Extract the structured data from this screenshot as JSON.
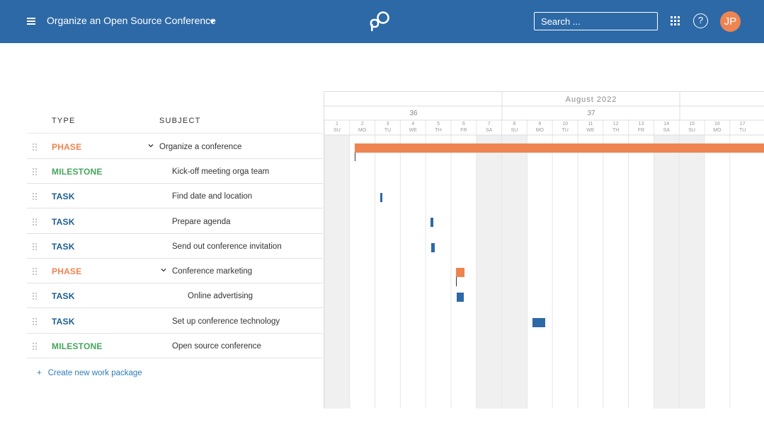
{
  "header": {
    "project_title": "Organize an Open Source Conference",
    "search_placeholder": "Search ...",
    "help_label": "?",
    "avatar_initials": "JP",
    "brand_color": "#2d69a6",
    "avatar_color": "#ee8451"
  },
  "table": {
    "columns": {
      "type": "TYPE",
      "subject": "SUBJECT"
    },
    "rows": [
      {
        "type": "PHASE",
        "subject": "Organize a conference",
        "indent": 0,
        "collapsible": true
      },
      {
        "type": "MILESTONE",
        "subject": "Kick-off meeting orga team",
        "indent": 1,
        "collapsible": false
      },
      {
        "type": "TASK",
        "subject": "Find date and location",
        "indent": 1,
        "collapsible": false
      },
      {
        "type": "TASK",
        "subject": "Prepare agenda",
        "indent": 1,
        "collapsible": false
      },
      {
        "type": "TASK",
        "subject": "Send out conference invitation",
        "indent": 1,
        "collapsible": false
      },
      {
        "type": "PHASE",
        "subject": "Conference marketing",
        "indent": 1,
        "collapsible": true
      },
      {
        "type": "TASK",
        "subject": "Online advertising",
        "indent": 2,
        "collapsible": false
      },
      {
        "type": "TASK",
        "subject": "Set up conference technology",
        "indent": 1,
        "collapsible": false
      },
      {
        "type": "MILESTONE",
        "subject": "Open source conference",
        "indent": 1,
        "collapsible": false
      }
    ],
    "create_label": "Create new work package",
    "create_icon": "+"
  },
  "gantt": {
    "month_label": "August 2022",
    "weeks": [
      "36",
      "37"
    ],
    "days": [
      {
        "num": "1",
        "dow": "SU",
        "weekend": true
      },
      {
        "num": "2",
        "dow": "MO",
        "weekend": false
      },
      {
        "num": "3",
        "dow": "TU",
        "weekend": false
      },
      {
        "num": "4",
        "dow": "WE",
        "weekend": false
      },
      {
        "num": "5",
        "dow": "TH",
        "weekend": false
      },
      {
        "num": "6",
        "dow": "FR",
        "weekend": false
      },
      {
        "num": "7",
        "dow": "SA",
        "weekend": true
      },
      {
        "num": "8",
        "dow": "SU",
        "weekend": true
      },
      {
        "num": "9",
        "dow": "MO",
        "weekend": false
      },
      {
        "num": "10",
        "dow": "TU",
        "weekend": false
      },
      {
        "num": "11",
        "dow": "WE",
        "weekend": false
      },
      {
        "num": "12",
        "dow": "TH",
        "weekend": false
      },
      {
        "num": "13",
        "dow": "FR",
        "weekend": false
      },
      {
        "num": "14",
        "dow": "SA",
        "weekend": true
      },
      {
        "num": "15",
        "dow": "SU",
        "weekend": true
      },
      {
        "num": "16",
        "dow": "MO",
        "weekend": false
      },
      {
        "num": "17",
        "dow": "TU",
        "weekend": false
      }
    ],
    "colors": {
      "phase": "#ee8451",
      "task": "#2d69a6",
      "weekend": "#f0f0f0"
    }
  }
}
